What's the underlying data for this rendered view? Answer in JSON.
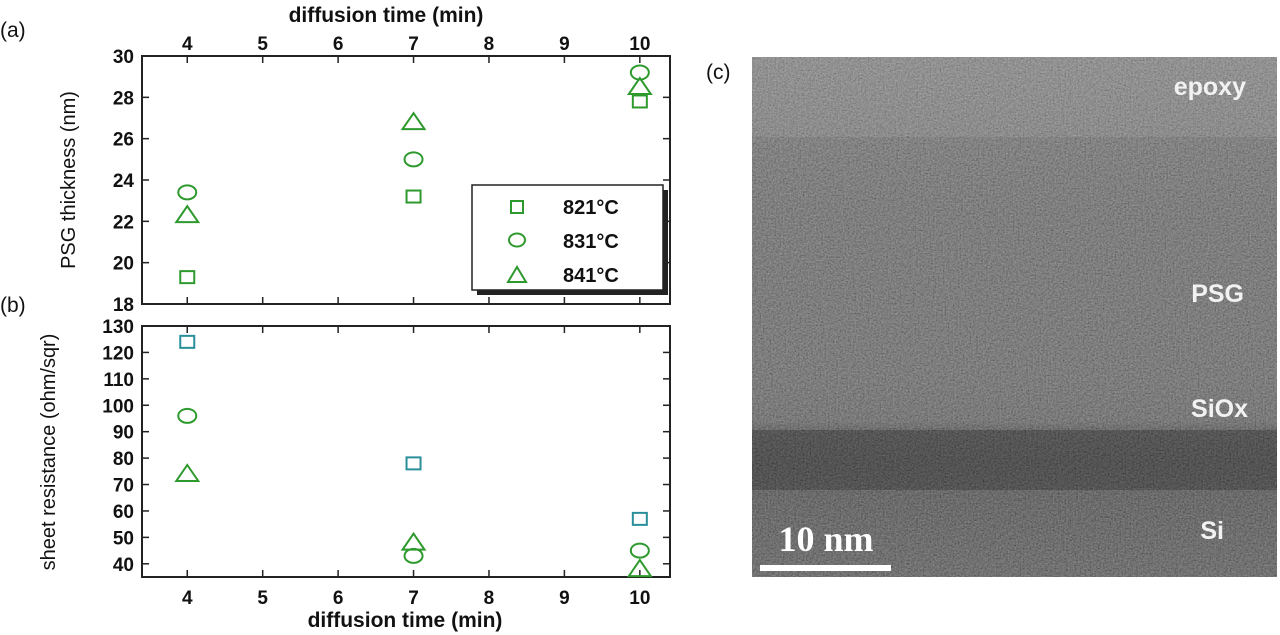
{
  "chart_data": [
    {
      "panel": "(a)",
      "type": "scatter",
      "xlabel": "diffusion time (min)",
      "ylabel": "PSG thickness (nm)",
      "xlim": [
        3.4,
        10.4
      ],
      "ylim": [
        18,
        30
      ],
      "x_ticks": [
        4,
        5,
        6,
        7,
        8,
        9,
        10
      ],
      "y_ticks": [
        18,
        20,
        22,
        24,
        26,
        28,
        30
      ],
      "series": [
        {
          "name": "821°C",
          "marker": "square",
          "color": "#2e9a2e",
          "x": [
            4,
            7,
            10
          ],
          "y": [
            19.3,
            23.2,
            27.8
          ]
        },
        {
          "name": "831°C",
          "marker": "circle",
          "color": "#2e9a2e",
          "x": [
            4,
            7,
            10
          ],
          "y": [
            23.4,
            25.0,
            29.2
          ]
        },
        {
          "name": "841°C",
          "marker": "triangle",
          "color": "#2e9a2e",
          "x": [
            4,
            7,
            10
          ],
          "y": [
            22.3,
            26.8,
            28.5
          ]
        }
      ],
      "legend": {
        "position": "lower-right",
        "entries": [
          "821°C",
          "831°C",
          "841°C"
        ]
      }
    },
    {
      "panel": "(b)",
      "type": "scatter",
      "xlabel": "diffusion time (min)",
      "ylabel": "sheet resistance (ohm/sqr)",
      "xlim": [
        3.4,
        10.4
      ],
      "ylim": [
        35,
        130
      ],
      "x_ticks": [
        4,
        5,
        6,
        7,
        8,
        9,
        10
      ],
      "y_ticks": [
        40,
        50,
        60,
        70,
        80,
        90,
        100,
        110,
        120,
        130
      ],
      "series": [
        {
          "name": "821°C",
          "marker": "square",
          "color": "#2a8f9a",
          "x": [
            4,
            7,
            10
          ],
          "y": [
            124,
            78,
            57
          ]
        },
        {
          "name": "831°C",
          "marker": "circle",
          "color": "#2e9a2e",
          "x": [
            4,
            7,
            10
          ],
          "y": [
            96,
            43,
            45
          ]
        },
        {
          "name": "841°C",
          "marker": "triangle",
          "color": "#2e9a2e",
          "x": [
            4,
            7,
            10
          ],
          "y": [
            74,
            48,
            38
          ]
        }
      ]
    }
  ],
  "tem_image": {
    "panel": "(c)",
    "layers": [
      "epoxy",
      "PSG",
      "SiOx",
      "Si"
    ],
    "scale_bar": "10 nm"
  }
}
